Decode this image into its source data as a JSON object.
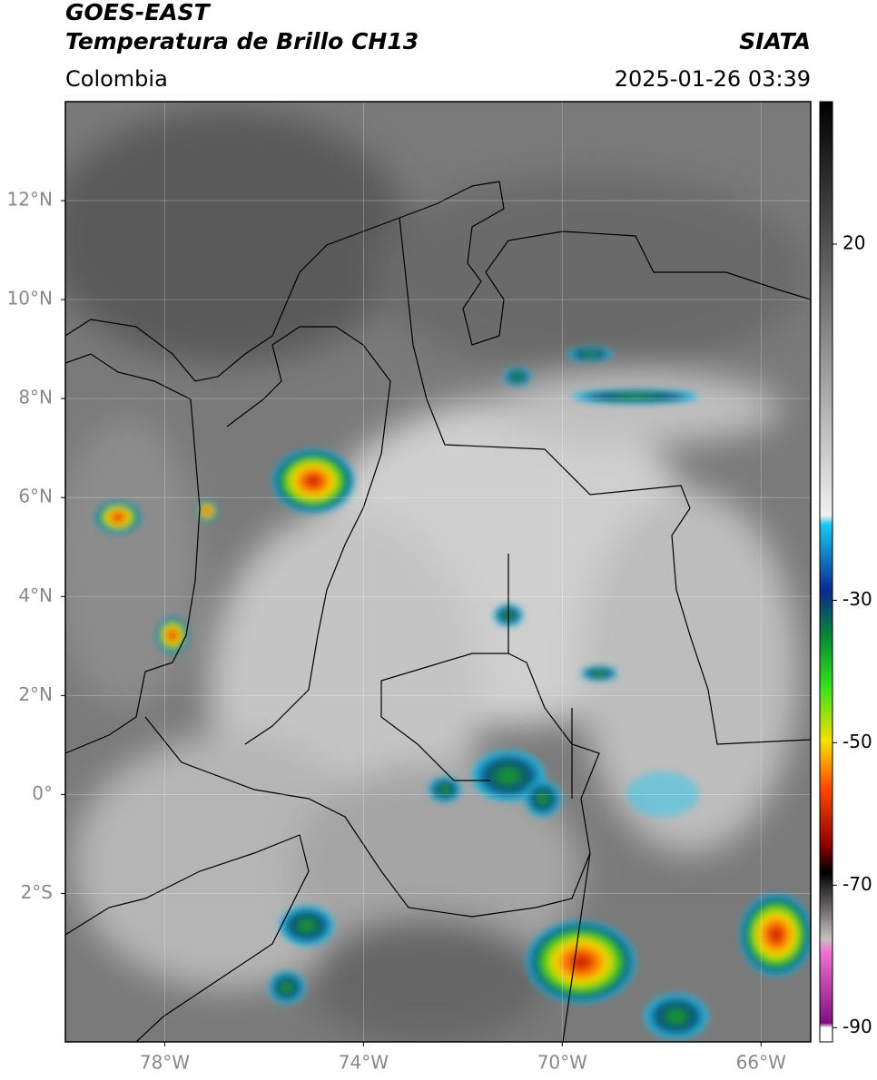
{
  "chart_data": {
    "type": "map",
    "title": "GOES-EAST",
    "subtitle": "Temperatura de Brillo CH13",
    "source": "SIATA",
    "region": "Colombia",
    "timestamp": "2025-01-26 03:39",
    "xlim": [
      -80,
      -65
    ],
    "ylim": [
      -5,
      14
    ],
    "xticks": [
      {
        "value": -78,
        "label": "78°W"
      },
      {
        "value": -74,
        "label": "74°W"
      },
      {
        "value": -70,
        "label": "70°W"
      },
      {
        "value": -66,
        "label": "66°W"
      }
    ],
    "yticks": [
      {
        "value": 12,
        "label": "12°N"
      },
      {
        "value": 10,
        "label": "10°N"
      },
      {
        "value": 8,
        "label": "8°N"
      },
      {
        "value": 6,
        "label": "6°N"
      },
      {
        "value": 4,
        "label": "4°N"
      },
      {
        "value": 2,
        "label": "2°N"
      },
      {
        "value": 0,
        "label": "0°"
      },
      {
        "value": -2,
        "label": "2°S"
      }
    ],
    "grid": true,
    "colorbar": {
      "lim": [
        -92,
        40
      ],
      "ticks": [
        20,
        -30,
        -50,
        -70,
        -90
      ]
    }
  }
}
